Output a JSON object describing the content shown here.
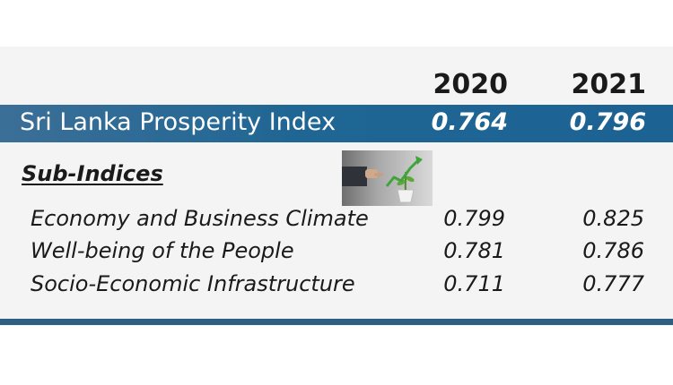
{
  "years": [
    "2020",
    "2021"
  ],
  "headline": {
    "label": "Sri Lanka Prosperity Index",
    "values": [
      "0.764",
      "0.796"
    ]
  },
  "sub_heading": "Sub-Indices",
  "sub_indices": [
    {
      "label": "Economy and Business Climate",
      "values": [
        "0.799",
        "0.825"
      ]
    },
    {
      "label": "Well-being of the People",
      "values": [
        "0.781",
        "0.786"
      ]
    },
    {
      "label": "Socio-Economic Infrastructure",
      "values": [
        "0.711",
        "0.777"
      ]
    }
  ],
  "colors": {
    "index_bar": "#1f6694",
    "bottom_rule": "#2d5f80",
    "panel_background": "#f4f4f4",
    "arrow_green": "#3fa53a"
  },
  "icons": {
    "photo": "growth-plant-chart-photo"
  }
}
